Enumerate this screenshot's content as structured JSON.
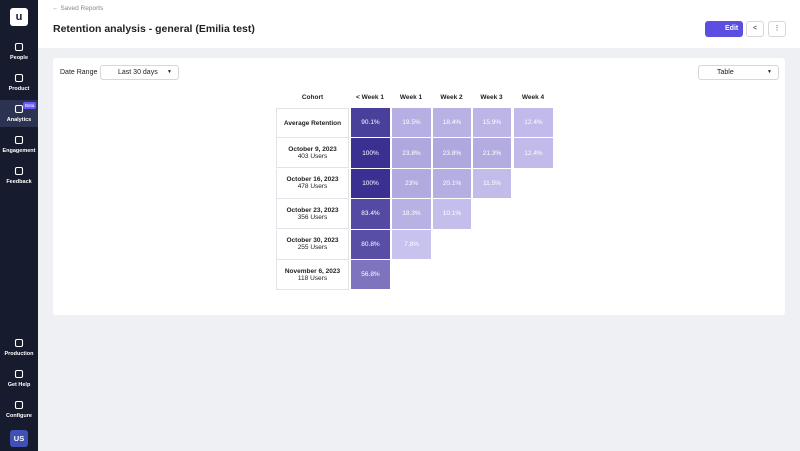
{
  "sidebar": {
    "items": [
      "People",
      "Product",
      "Analytics",
      "Engagement",
      "Feedback"
    ],
    "badge": "Beta",
    "bottom": [
      "Production",
      "Get Help",
      "Configure"
    ],
    "avatar": "US"
  },
  "header": {
    "breadcrumb": "Saved Reports",
    "title": "Retention analysis - general (Emilia test)",
    "edit": "Edit"
  },
  "controls": {
    "date_range_label": "Date Range",
    "date_range": "Last 30 days",
    "view": "Table"
  },
  "table": {
    "columns": [
      "Cohort",
      "< Week 1",
      "Week 1",
      "Week 2",
      "Week 3",
      "Week 4"
    ],
    "rows": [
      {
        "cohort": "Average Retention",
        "cells": [
          "90.1%",
          "19.5%",
          "18.4%",
          "15.9%",
          "12.4%"
        ]
      },
      {
        "cohort": "October 9, 2023",
        "users": "403 Users",
        "cells": [
          "100%",
          "23.8%",
          "23.8%",
          "21.3%",
          "12.4%"
        ]
      },
      {
        "cohort": "October 16, 2023",
        "users": "478 Users",
        "cells": [
          "100%",
          "23%",
          "20.1%",
          "11.5%"
        ]
      },
      {
        "cohort": "October 23, 2023",
        "users": "356 Users",
        "cells": [
          "83.4%",
          "18.3%",
          "10.1%"
        ]
      },
      {
        "cohort": "October 30, 2023",
        "users": "255 Users",
        "cells": [
          "80.8%",
          "7.8%"
        ]
      },
      {
        "cohort": "November 6, 2023",
        "users": "118 Users",
        "cells": [
          "56.8%"
        ]
      }
    ]
  }
}
